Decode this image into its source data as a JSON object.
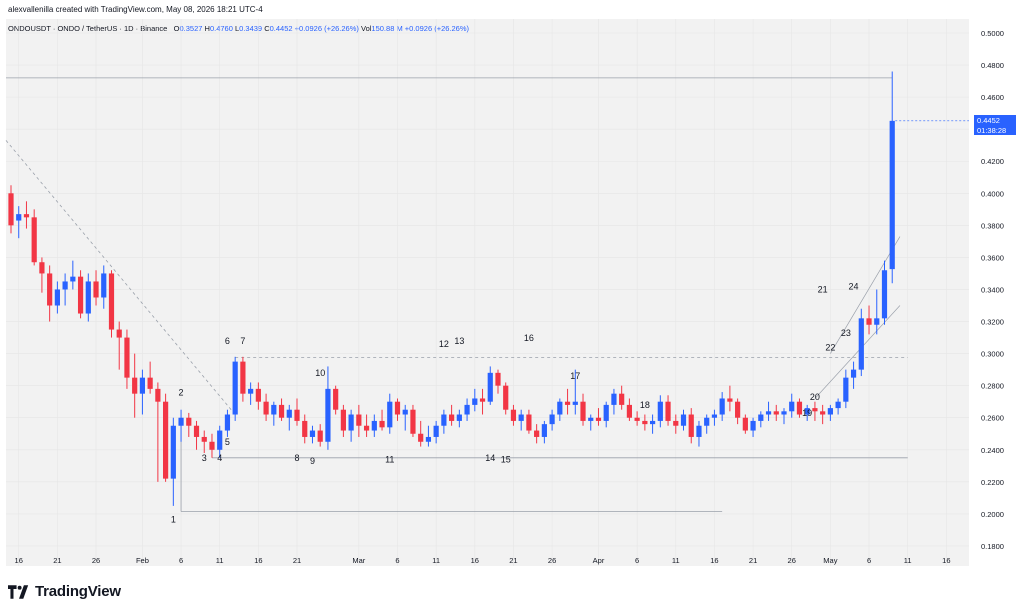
{
  "header": {
    "created_by": "alexvallenilla created with TradingView.com, May 08, 2026 18:21 UTC-4"
  },
  "legend": {
    "symbol": "ONDOUSDT · ONDO / TetherUS · 1D · Binance",
    "open_label": "O",
    "open": "0.3527",
    "high_label": "H",
    "high": "0.4760",
    "low_label": "L",
    "low": "0.3439",
    "close_label": "C",
    "close": "0.4452",
    "change": "+0.0926 (+26.26%)",
    "vol_label": "Vol",
    "vol": "150.88 M",
    "vol_change": "+0.0926 (+26.26%)"
  },
  "price_tag": {
    "price": "0.4452",
    "countdown": "01:38:28"
  },
  "brand": {
    "name": "TradingView"
  },
  "colors": {
    "up": "#2962ff",
    "down": "#f23645",
    "grid": "#e6e6e6",
    "line": "#9aa0aa"
  },
  "chart_data": {
    "type": "candlestick",
    "ylim": [
      0.17,
      0.51
    ],
    "y_ticks": [
      "0.5000",
      "0.4800",
      "0.4600",
      "0.4400",
      "0.4200",
      "0.4000",
      "0.3800",
      "0.3600",
      "0.3400",
      "0.3200",
      "0.3000",
      "0.2800",
      "0.2600",
      "0.2400",
      "0.2200",
      "0.2000",
      "0.1800"
    ],
    "x_tick_labels": [
      {
        "i": 1,
        "label": "16"
      },
      {
        "i": 6,
        "label": "21"
      },
      {
        "i": 11,
        "label": "26"
      },
      {
        "i": 17,
        "label": "Feb"
      },
      {
        "i": 22,
        "label": "6"
      },
      {
        "i": 27,
        "label": "11"
      },
      {
        "i": 32,
        "label": "16"
      },
      {
        "i": 37,
        "label": "21"
      },
      {
        "i": 45,
        "label": "Mar"
      },
      {
        "i": 50,
        "label": "6"
      },
      {
        "i": 55,
        "label": "11"
      },
      {
        "i": 60,
        "label": "16"
      },
      {
        "i": 65,
        "label": "21"
      },
      {
        "i": 70,
        "label": "26"
      },
      {
        "i": 76,
        "label": "Apr"
      },
      {
        "i": 81,
        "label": "6"
      },
      {
        "i": 86,
        "label": "11"
      },
      {
        "i": 91,
        "label": "16"
      },
      {
        "i": 96,
        "label": "21"
      },
      {
        "i": 101,
        "label": "26"
      },
      {
        "i": 106,
        "label": "May"
      },
      {
        "i": 111,
        "label": "6"
      },
      {
        "i": 116,
        "label": "11"
      },
      {
        "i": 121,
        "label": "16"
      }
    ],
    "ohlc": [
      [
        0.4,
        0.405,
        0.375,
        0.38
      ],
      [
        0.383,
        0.392,
        0.372,
        0.387
      ],
      [
        0.387,
        0.395,
        0.378,
        0.385
      ],
      [
        0.385,
        0.39,
        0.355,
        0.357
      ],
      [
        0.357,
        0.36,
        0.338,
        0.35
      ],
      [
        0.35,
        0.355,
        0.32,
        0.33
      ],
      [
        0.33,
        0.345,
        0.325,
        0.34
      ],
      [
        0.34,
        0.35,
        0.33,
        0.345
      ],
      [
        0.345,
        0.358,
        0.34,
        0.348
      ],
      [
        0.348,
        0.352,
        0.322,
        0.325
      ],
      [
        0.325,
        0.35,
        0.32,
        0.345
      ],
      [
        0.345,
        0.352,
        0.33,
        0.335
      ],
      [
        0.335,
        0.355,
        0.328,
        0.35
      ],
      [
        0.35,
        0.352,
        0.31,
        0.315
      ],
      [
        0.315,
        0.32,
        0.29,
        0.31
      ],
      [
        0.31,
        0.315,
        0.278,
        0.285
      ],
      [
        0.285,
        0.3,
        0.26,
        0.275
      ],
      [
        0.275,
        0.29,
        0.262,
        0.285
      ],
      [
        0.285,
        0.295,
        0.275,
        0.278
      ],
      [
        0.278,
        0.282,
        0.22,
        0.27
      ],
      [
        0.27,
        0.275,
        0.22,
        0.222
      ],
      [
        0.222,
        0.26,
        0.205,
        0.255
      ],
      [
        0.255,
        0.265,
        0.245,
        0.26
      ],
      [
        0.26,
        0.263,
        0.248,
        0.255
      ],
      [
        0.255,
        0.258,
        0.24,
        0.248
      ],
      [
        0.248,
        0.252,
        0.238,
        0.245
      ],
      [
        0.245,
        0.25,
        0.235,
        0.24
      ],
      [
        0.24,
        0.255,
        0.235,
        0.252
      ],
      [
        0.252,
        0.265,
        0.248,
        0.262
      ],
      [
        0.262,
        0.298,
        0.258,
        0.295
      ],
      [
        0.295,
        0.298,
        0.27,
        0.275
      ],
      [
        0.275,
        0.282,
        0.268,
        0.278
      ],
      [
        0.278,
        0.282,
        0.265,
        0.27
      ],
      [
        0.27,
        0.275,
        0.258,
        0.262
      ],
      [
        0.262,
        0.27,
        0.255,
        0.268
      ],
      [
        0.268,
        0.272,
        0.258,
        0.26
      ],
      [
        0.26,
        0.268,
        0.252,
        0.265
      ],
      [
        0.265,
        0.272,
        0.255,
        0.258
      ],
      [
        0.258,
        0.262,
        0.244,
        0.248
      ],
      [
        0.248,
        0.255,
        0.244,
        0.252
      ],
      [
        0.252,
        0.256,
        0.242,
        0.245
      ],
      [
        0.245,
        0.292,
        0.24,
        0.278
      ],
      [
        0.278,
        0.28,
        0.262,
        0.265
      ],
      [
        0.265,
        0.268,
        0.248,
        0.252
      ],
      [
        0.252,
        0.265,
        0.245,
        0.262
      ],
      [
        0.262,
        0.268,
        0.248,
        0.255
      ],
      [
        0.255,
        0.262,
        0.248,
        0.252
      ],
      [
        0.252,
        0.262,
        0.248,
        0.258
      ],
      [
        0.258,
        0.265,
        0.252,
        0.254
      ],
      [
        0.254,
        0.275,
        0.25,
        0.27
      ],
      [
        0.27,
        0.272,
        0.258,
        0.262
      ],
      [
        0.262,
        0.268,
        0.252,
        0.265
      ],
      [
        0.265,
        0.268,
        0.248,
        0.25
      ],
      [
        0.25,
        0.258,
        0.242,
        0.245
      ],
      [
        0.245,
        0.255,
        0.242,
        0.248
      ],
      [
        0.248,
        0.258,
        0.244,
        0.255
      ],
      [
        0.255,
        0.265,
        0.25,
        0.262
      ],
      [
        0.262,
        0.268,
        0.255,
        0.258
      ],
      [
        0.258,
        0.265,
        0.254,
        0.262
      ],
      [
        0.262,
        0.272,
        0.258,
        0.268
      ],
      [
        0.268,
        0.278,
        0.264,
        0.272
      ],
      [
        0.272,
        0.278,
        0.262,
        0.27
      ],
      [
        0.27,
        0.292,
        0.268,
        0.288
      ],
      [
        0.288,
        0.29,
        0.275,
        0.28
      ],
      [
        0.28,
        0.282,
        0.262,
        0.265
      ],
      [
        0.265,
        0.268,
        0.255,
        0.258
      ],
      [
        0.258,
        0.265,
        0.252,
        0.262
      ],
      [
        0.262,
        0.265,
        0.25,
        0.252
      ],
      [
        0.252,
        0.256,
        0.244,
        0.248
      ],
      [
        0.248,
        0.258,
        0.244,
        0.256
      ],
      [
        0.256,
        0.265,
        0.252,
        0.262
      ],
      [
        0.262,
        0.272,
        0.258,
        0.27
      ],
      [
        0.27,
        0.278,
        0.262,
        0.268
      ],
      [
        0.268,
        0.29,
        0.262,
        0.27
      ],
      [
        0.27,
        0.275,
        0.255,
        0.258
      ],
      [
        0.258,
        0.262,
        0.252,
        0.26
      ],
      [
        0.26,
        0.266,
        0.255,
        0.258
      ],
      [
        0.258,
        0.27,
        0.254,
        0.268
      ],
      [
        0.268,
        0.278,
        0.262,
        0.275
      ],
      [
        0.275,
        0.28,
        0.265,
        0.268
      ],
      [
        0.268,
        0.272,
        0.258,
        0.26
      ],
      [
        0.26,
        0.264,
        0.255,
        0.258
      ],
      [
        0.258,
        0.262,
        0.252,
        0.256
      ],
      [
        0.256,
        0.262,
        0.25,
        0.258
      ],
      [
        0.258,
        0.274,
        0.254,
        0.27
      ],
      [
        0.27,
        0.274,
        0.255,
        0.258
      ],
      [
        0.258,
        0.262,
        0.25,
        0.255
      ],
      [
        0.255,
        0.265,
        0.252,
        0.262
      ],
      [
        0.262,
        0.266,
        0.244,
        0.248
      ],
      [
        0.248,
        0.258,
        0.242,
        0.255
      ],
      [
        0.255,
        0.262,
        0.25,
        0.26
      ],
      [
        0.26,
        0.265,
        0.255,
        0.262
      ],
      [
        0.262,
        0.276,
        0.258,
        0.272
      ],
      [
        0.272,
        0.28,
        0.264,
        0.27
      ],
      [
        0.27,
        0.272,
        0.256,
        0.26
      ],
      [
        0.26,
        0.262,
        0.25,
        0.252
      ],
      [
        0.252,
        0.26,
        0.248,
        0.258
      ],
      [
        0.258,
        0.264,
        0.254,
        0.262
      ],
      [
        0.262,
        0.27,
        0.258,
        0.264
      ],
      [
        0.264,
        0.268,
        0.258,
        0.262
      ],
      [
        0.262,
        0.266,
        0.256,
        0.264
      ],
      [
        0.264,
        0.275,
        0.26,
        0.27
      ],
      [
        0.27,
        0.272,
        0.26,
        0.262
      ],
      [
        0.262,
        0.268,
        0.258,
        0.266
      ],
      [
        0.266,
        0.27,
        0.258,
        0.264
      ],
      [
        0.264,
        0.268,
        0.256,
        0.262
      ],
      [
        0.262,
        0.268,
        0.258,
        0.266
      ],
      [
        0.266,
        0.272,
        0.262,
        0.27
      ],
      [
        0.27,
        0.29,
        0.266,
        0.285
      ],
      [
        0.285,
        0.295,
        0.278,
        0.29
      ],
      [
        0.29,
        0.328,
        0.286,
        0.322
      ],
      [
        0.322,
        0.33,
        0.312,
        0.318
      ],
      [
        0.318,
        0.34,
        0.312,
        0.322
      ],
      [
        0.322,
        0.358,
        0.318,
        0.352
      ],
      [
        0.3527,
        0.476,
        0.3439,
        0.4452
      ]
    ],
    "levels": [
      {
        "name": "high-line",
        "price": 0.472
      },
      {
        "name": "resistance",
        "price": 0.2975
      },
      {
        "name": "support",
        "price": 0.235
      },
      {
        "name": "low-line",
        "price": 0.2015
      }
    ],
    "wave_labels": [
      {
        "text": "1",
        "i": 21,
        "price": 0.1945
      },
      {
        "text": "2",
        "i": 22,
        "price": 0.274
      },
      {
        "text": "3",
        "i": 25,
        "price": 0.233
      },
      {
        "text": "4",
        "i": 27,
        "price": 0.233
      },
      {
        "text": "5",
        "i": 28,
        "price": 0.243
      },
      {
        "text": "6",
        "i": 28,
        "price": 0.306
      },
      {
        "text": "7",
        "i": 30,
        "price": 0.306
      },
      {
        "text": "8",
        "i": 37,
        "price": 0.233
      },
      {
        "text": "9",
        "i": 39,
        "price": 0.231
      },
      {
        "text": "10",
        "i": 40,
        "price": 0.286
      },
      {
        "text": "11",
        "i": 49,
        "price": 0.232
      },
      {
        "text": "12",
        "i": 56,
        "price": 0.304
      },
      {
        "text": "13",
        "i": 58,
        "price": 0.306
      },
      {
        "text": "14",
        "i": 62,
        "price": 0.233
      },
      {
        "text": "15",
        "i": 64,
        "price": 0.232
      },
      {
        "text": "16",
        "i": 67,
        "price": 0.308
      },
      {
        "text": "17",
        "i": 73,
        "price": 0.284
      },
      {
        "text": "18",
        "i": 82,
        "price": 0.266
      },
      {
        "text": "19",
        "i": 103,
        "price": 0.261
      },
      {
        "text": "20",
        "i": 104,
        "price": 0.271
      },
      {
        "text": "21",
        "i": 105,
        "price": 0.338
      },
      {
        "text": "22",
        "i": 106,
        "price": 0.302
      },
      {
        "text": "23",
        "i": 108,
        "price": 0.311
      },
      {
        "text": "24",
        "i": 109,
        "price": 0.34
      }
    ]
  }
}
